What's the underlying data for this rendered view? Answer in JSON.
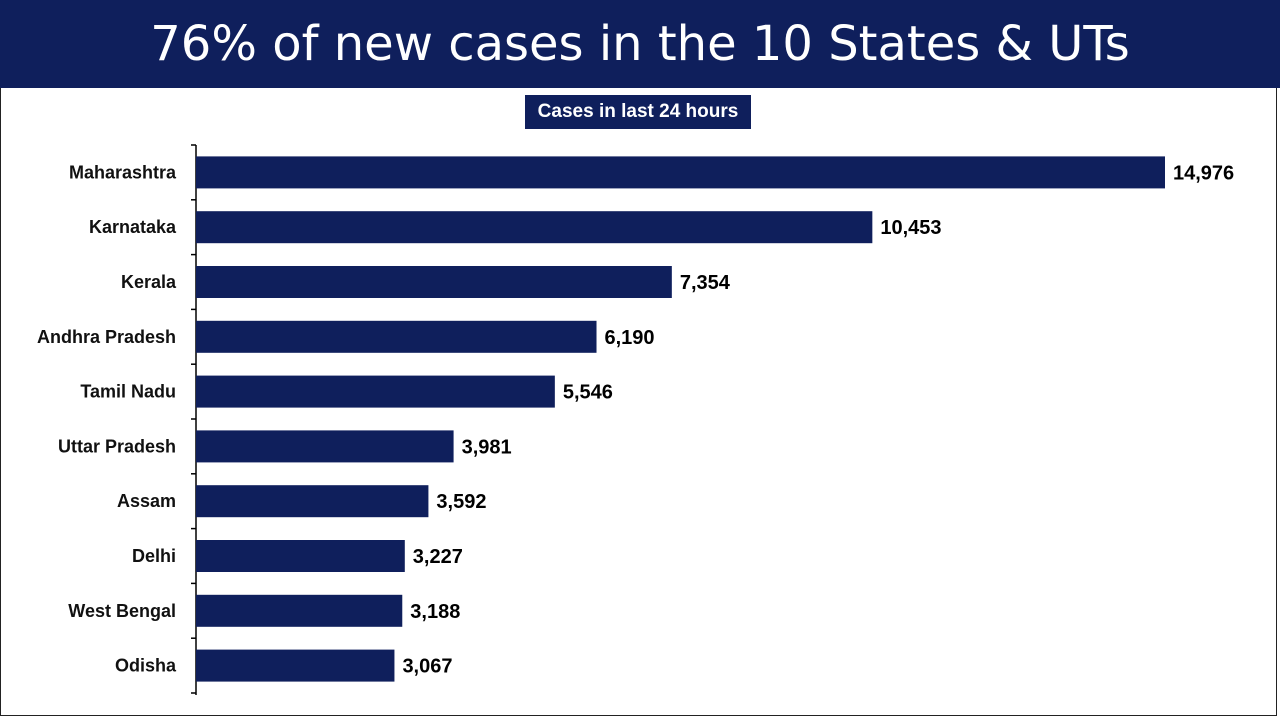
{
  "header": {
    "title": "76% of new cases in the 10 States & UTs"
  },
  "colors": {
    "navy": "#0f1f5c",
    "frame": "#222222",
    "label_text": "#111111"
  },
  "chart_data": {
    "type": "bar",
    "orientation": "horizontal",
    "title": "Cases in last 24 hours",
    "categories": [
      "Maharashtra",
      "Karnataka",
      "Kerala",
      "Andhra Pradesh",
      "Tamil Nadu",
      "Uttar Pradesh",
      "Assam",
      "Delhi",
      "West Bengal",
      "Odisha"
    ],
    "values": [
      14976,
      10453,
      7354,
      6190,
      5546,
      3981,
      3592,
      3227,
      3188,
      3067
    ],
    "value_labels": [
      "14,976",
      "10,453",
      "7,354",
      "6,190",
      "5,546",
      "3,981",
      "3,592",
      "3,227",
      "3,188",
      "3,067"
    ],
    "xlim": [
      0,
      14976
    ],
    "grid": false,
    "legend": "none",
    "data_labels": "outside-end"
  }
}
